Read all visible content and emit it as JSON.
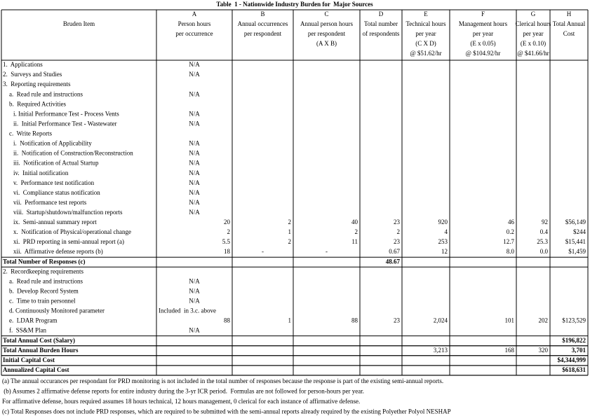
{
  "title": "Table  1 - Nationwide Industry Burden for  Major Sources",
  "table": {
    "columns": [
      {
        "lines": [
          "Bruden Item"
        ]
      },
      {
        "letter": "A",
        "lines": [
          "Person hours",
          "per occurrence"
        ]
      },
      {
        "letter": "B",
        "lines": [
          "Annual occurrences",
          "per respondent"
        ]
      },
      {
        "letter": "C",
        "lines": [
          "Annual person hours",
          "per respondent",
          "(A X B)"
        ]
      },
      {
        "letter": "D",
        "lines": [
          "Total number",
          "of respondents"
        ]
      },
      {
        "letter": "E",
        "lines": [
          "Technical hours",
          "per year",
          "(C X D)",
          "@ $51.62/hr"
        ]
      },
      {
        "letter": "F",
        "lines": [
          "Management hours",
          "per year",
          "(E x 0.05)",
          "@ $104.92/hr"
        ]
      },
      {
        "letter": "G",
        "lines": [
          "Clerical hours",
          "per year",
          "(E x 0.10)",
          "@ $41.66/hr"
        ]
      },
      {
        "letter": "H",
        "lines": [
          "Total Annual",
          "Cost"
        ]
      }
    ],
    "rows": [
      {
        "item": "1.  Applications",
        "A": "N/A"
      },
      {
        "item": "2.  Surveys and Studies",
        "A": "N/A"
      },
      {
        "item": "3.  Reporting requirements",
        "children": [
          {
            "item": "a.  Read rule and instructions",
            "A": "N/A"
          },
          {
            "item": "b.  Required Activities",
            "children": [
              {
                "item": "i. Initial Performance Test - Process Vents",
                "A": "N/A"
              },
              {
                "item": "ii.  Initial Performance Test - Wastewater",
                "A": "N/A"
              }
            ]
          },
          {
            "item": "c.  Write Reports",
            "children": [
              {
                "item": "i.  Notification of Applicability",
                "A": "N/A"
              },
              {
                "item": "ii.  Notification of Construction/Reconstruction",
                "A": "N/A"
              },
              {
                "item": "iii.  Notification of Actual Startup",
                "A": "N/A"
              },
              {
                "item": "iv.  Initial notification",
                "A": "N/A"
              },
              {
                "item": "v.  Performance test notification",
                "A": "N/A"
              },
              {
                "item": "vi.  Compliance status notification",
                "A": "N/A"
              },
              {
                "item": "vii.  Performance test reports",
                "A": "N/A"
              },
              {
                "item": "viii.  Startup/shutdown/malfunction reports",
                "A": "N/A"
              },
              {
                "item": "ix.  Semi-annual summary report",
                "A": "20",
                "B": "2",
                "C": "40",
                "D": "23",
                "E": "920",
                "F": "46",
                "G": "92",
                "H": "$56,149"
              },
              {
                "item": "x.  Notification of Physical/operational change",
                "A": "2",
                "B": "1",
                "C": "2",
                "D": "2",
                "E": "4",
                "F": "0.2",
                "G": "0.4",
                "H": "$244"
              },
              {
                "item": "xi.  PRD reporting in semi-annual report (a)",
                "A": "5.5",
                "B": "2",
                "C": "11",
                "D": "23",
                "E": "253",
                "F": "12.7",
                "G": "25.3",
                "H": "$15,441"
              },
              {
                "item": "xii.  Affirmative defense reports (b)",
                "A": "18",
                "B": "-",
                "C": "-",
                "D": "0.67",
                "E": "12",
                "F": "8.0",
                "G": "0.0",
                "H": "$1,459"
              }
            ]
          }
        ],
        "total": {
          "item": "Total Number of Responses (c)",
          "D": "48.67"
        }
      },
      {
        "item": "2.  Recordkeeping requirements",
        "children": [
          {
            "item": "a.  Read rule and instructions",
            "A": "N/A"
          },
          {
            "item": "b.  Develop Record System",
            "A": "N/A"
          },
          {
            "item": "c.  Time to train personnel",
            "A": "N/A"
          },
          {
            "item": "d. Continuously Monitored parameter",
            "A": "Included  in 3.c. above"
          },
          {
            "item": "e.  LDAR Program",
            "A": "88",
            "B": "1",
            "C": "88",
            "D": "23",
            "E": "2,024",
            "F": "101",
            "G": "202",
            "H": "$123,529"
          },
          {
            "item": "f.  SS&M Plan",
            "A": "N/A"
          }
        ]
      }
    ],
    "totals": [
      {
        "item": "Total Annual Cost (Salary)",
        "H": "$196,822"
      },
      {
        "item": "Total Annual Burden Hours",
        "E": "3,213",
        "F": "168",
        "G": "320",
        "H": "3,701"
      },
      {
        "item": "Initial Capital Cost",
        "H": "$4,344,999"
      },
      {
        "item": "Annualized Capital Cost",
        "H": "$618,631"
      }
    ]
  },
  "footnotes": [
    "(a) The annual occurances per respondant for PRD monitoring is not included in the total number of responses because the response is part of the existing semi-annual reports.",
    " (b) Assumes 2 affirmative defense reports for entire industry during the 3-yr ICR period.  Formulas are not followed for person-hours per year.",
    "For affirmative defense, hours required assumes 18 hours technical, 12 hours management, 0 clerical for each instance of affirmative defense.",
    "(c) Total Responses does not include PRD responses, which are required to be submitted with the semi-annual reports already required by the existing Polyether Polyol NESHAP"
  ]
}
